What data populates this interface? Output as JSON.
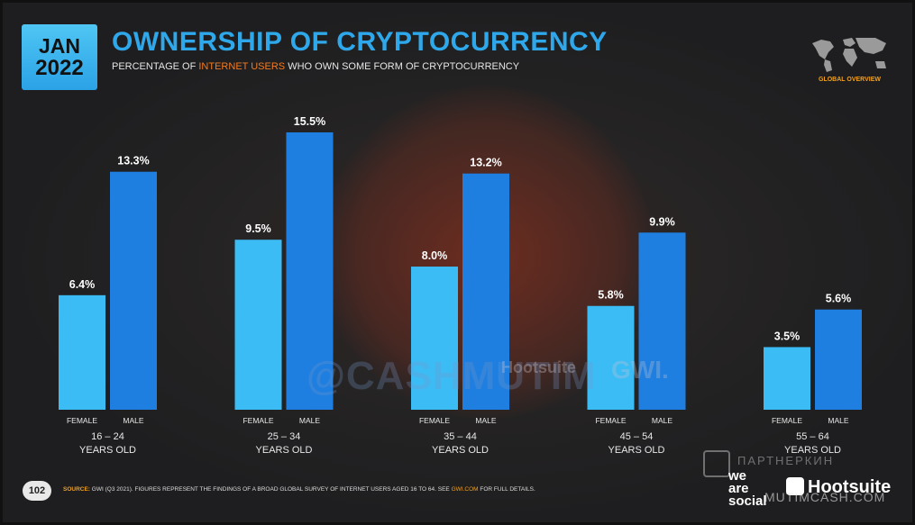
{
  "badge": {
    "month": "JAN",
    "year": "2022"
  },
  "title": "OWNERSHIP OF CRYPTOCURRENCY",
  "subtitle": {
    "before": "PERCENTAGE OF ",
    "highlight": "INTERNET USERS",
    "after": " WHO OWN SOME FORM OF CRYPTOCURRENCY"
  },
  "map_label": "GLOBAL OVERVIEW",
  "page_number": "102",
  "source": {
    "label": "SOURCE:",
    "text": " GWI (Q3 2021). FIGURES REPRESENT THE FINDINGS OF A BROAD GLOBAL SURVEY OF INTERNET USERS AGED 16 TO 64. SEE ",
    "link": "GWI.COM",
    "tail": " FOR FULL DETAILS."
  },
  "watermarks": {
    "main": "@CASHMUTIM",
    "hootsuite": "Hootsuite",
    "gwi": "GWI.",
    "partner": "ПАРТНЕРКИН",
    "mutim": "MUTIMCASH.COM"
  },
  "logos": {
    "we_are_social": [
      "we",
      "are",
      "social"
    ],
    "hootsuite": "Hootsuite"
  },
  "colors": {
    "female": "#3cbcf5",
    "male": "#1f7fe0",
    "title": "#2ea8ea",
    "highlight": "#f47b20",
    "badge": "#3db4f0"
  },
  "chart_data": {
    "type": "bar",
    "categories": [
      "16 – 24\nYEARS OLD",
      "25 – 34\nYEARS OLD",
      "35 – 44\nYEARS OLD",
      "45 – 54\nYEARS OLD",
      "55 – 64\nYEARS OLD"
    ],
    "sub_labels": [
      "FEMALE",
      "MALE"
    ],
    "series": [
      {
        "name": "FEMALE",
        "values": [
          6.4,
          9.5,
          8.0,
          5.8,
          3.5
        ],
        "labels": [
          "6.4%",
          "9.5%",
          "8.0%",
          "5.8%",
          "3.5%"
        ]
      },
      {
        "name": "MALE",
        "values": [
          13.3,
          15.5,
          13.2,
          9.9,
          5.6
        ],
        "labels": [
          "13.3%",
          "15.5%",
          "13.2%",
          "9.9%",
          "5.6%"
        ]
      }
    ],
    "ylim": [
      0,
      15.5
    ],
    "grid": false
  }
}
